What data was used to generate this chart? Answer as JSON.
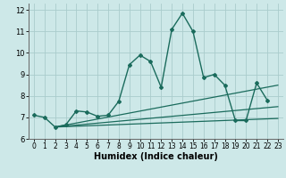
{
  "xlabel": "Humidex (Indice chaleur)",
  "xlim": [
    -0.5,
    23.5
  ],
  "ylim": [
    6,
    12.3
  ],
  "yticks": [
    6,
    7,
    8,
    9,
    10,
    11,
    12
  ],
  "xticks": [
    0,
    1,
    2,
    3,
    4,
    5,
    6,
    7,
    8,
    9,
    10,
    11,
    12,
    13,
    14,
    15,
    16,
    17,
    18,
    19,
    20,
    21,
    22,
    23
  ],
  "bg_color": "#cde8e8",
  "grid_color": "#aacccc",
  "line_color": "#1a6b5c",
  "lines": [
    {
      "x": [
        0,
        1,
        2,
        3,
        4,
        5,
        6,
        7,
        8,
        9,
        10,
        11,
        12,
        13,
        14,
        15,
        16,
        17,
        18,
        19,
        20,
        21,
        22
      ],
      "y": [
        7.1,
        7.0,
        6.55,
        6.65,
        7.3,
        7.25,
        7.05,
        7.1,
        7.75,
        9.45,
        9.9,
        9.6,
        8.4,
        11.1,
        11.85,
        11.0,
        8.85,
        9.0,
        8.5,
        6.85,
        6.85,
        8.6,
        7.8
      ],
      "marker": "D",
      "markersize": 2.0,
      "linewidth": 1.0
    },
    {
      "x": [
        2,
        23
      ],
      "y": [
        6.55,
        8.5
      ],
      "marker": null,
      "markersize": 0,
      "linewidth": 0.9
    },
    {
      "x": [
        2,
        23
      ],
      "y": [
        6.55,
        7.5
      ],
      "marker": null,
      "markersize": 0,
      "linewidth": 0.9
    },
    {
      "x": [
        2,
        23
      ],
      "y": [
        6.55,
        6.95
      ],
      "marker": null,
      "markersize": 0,
      "linewidth": 0.9
    }
  ]
}
